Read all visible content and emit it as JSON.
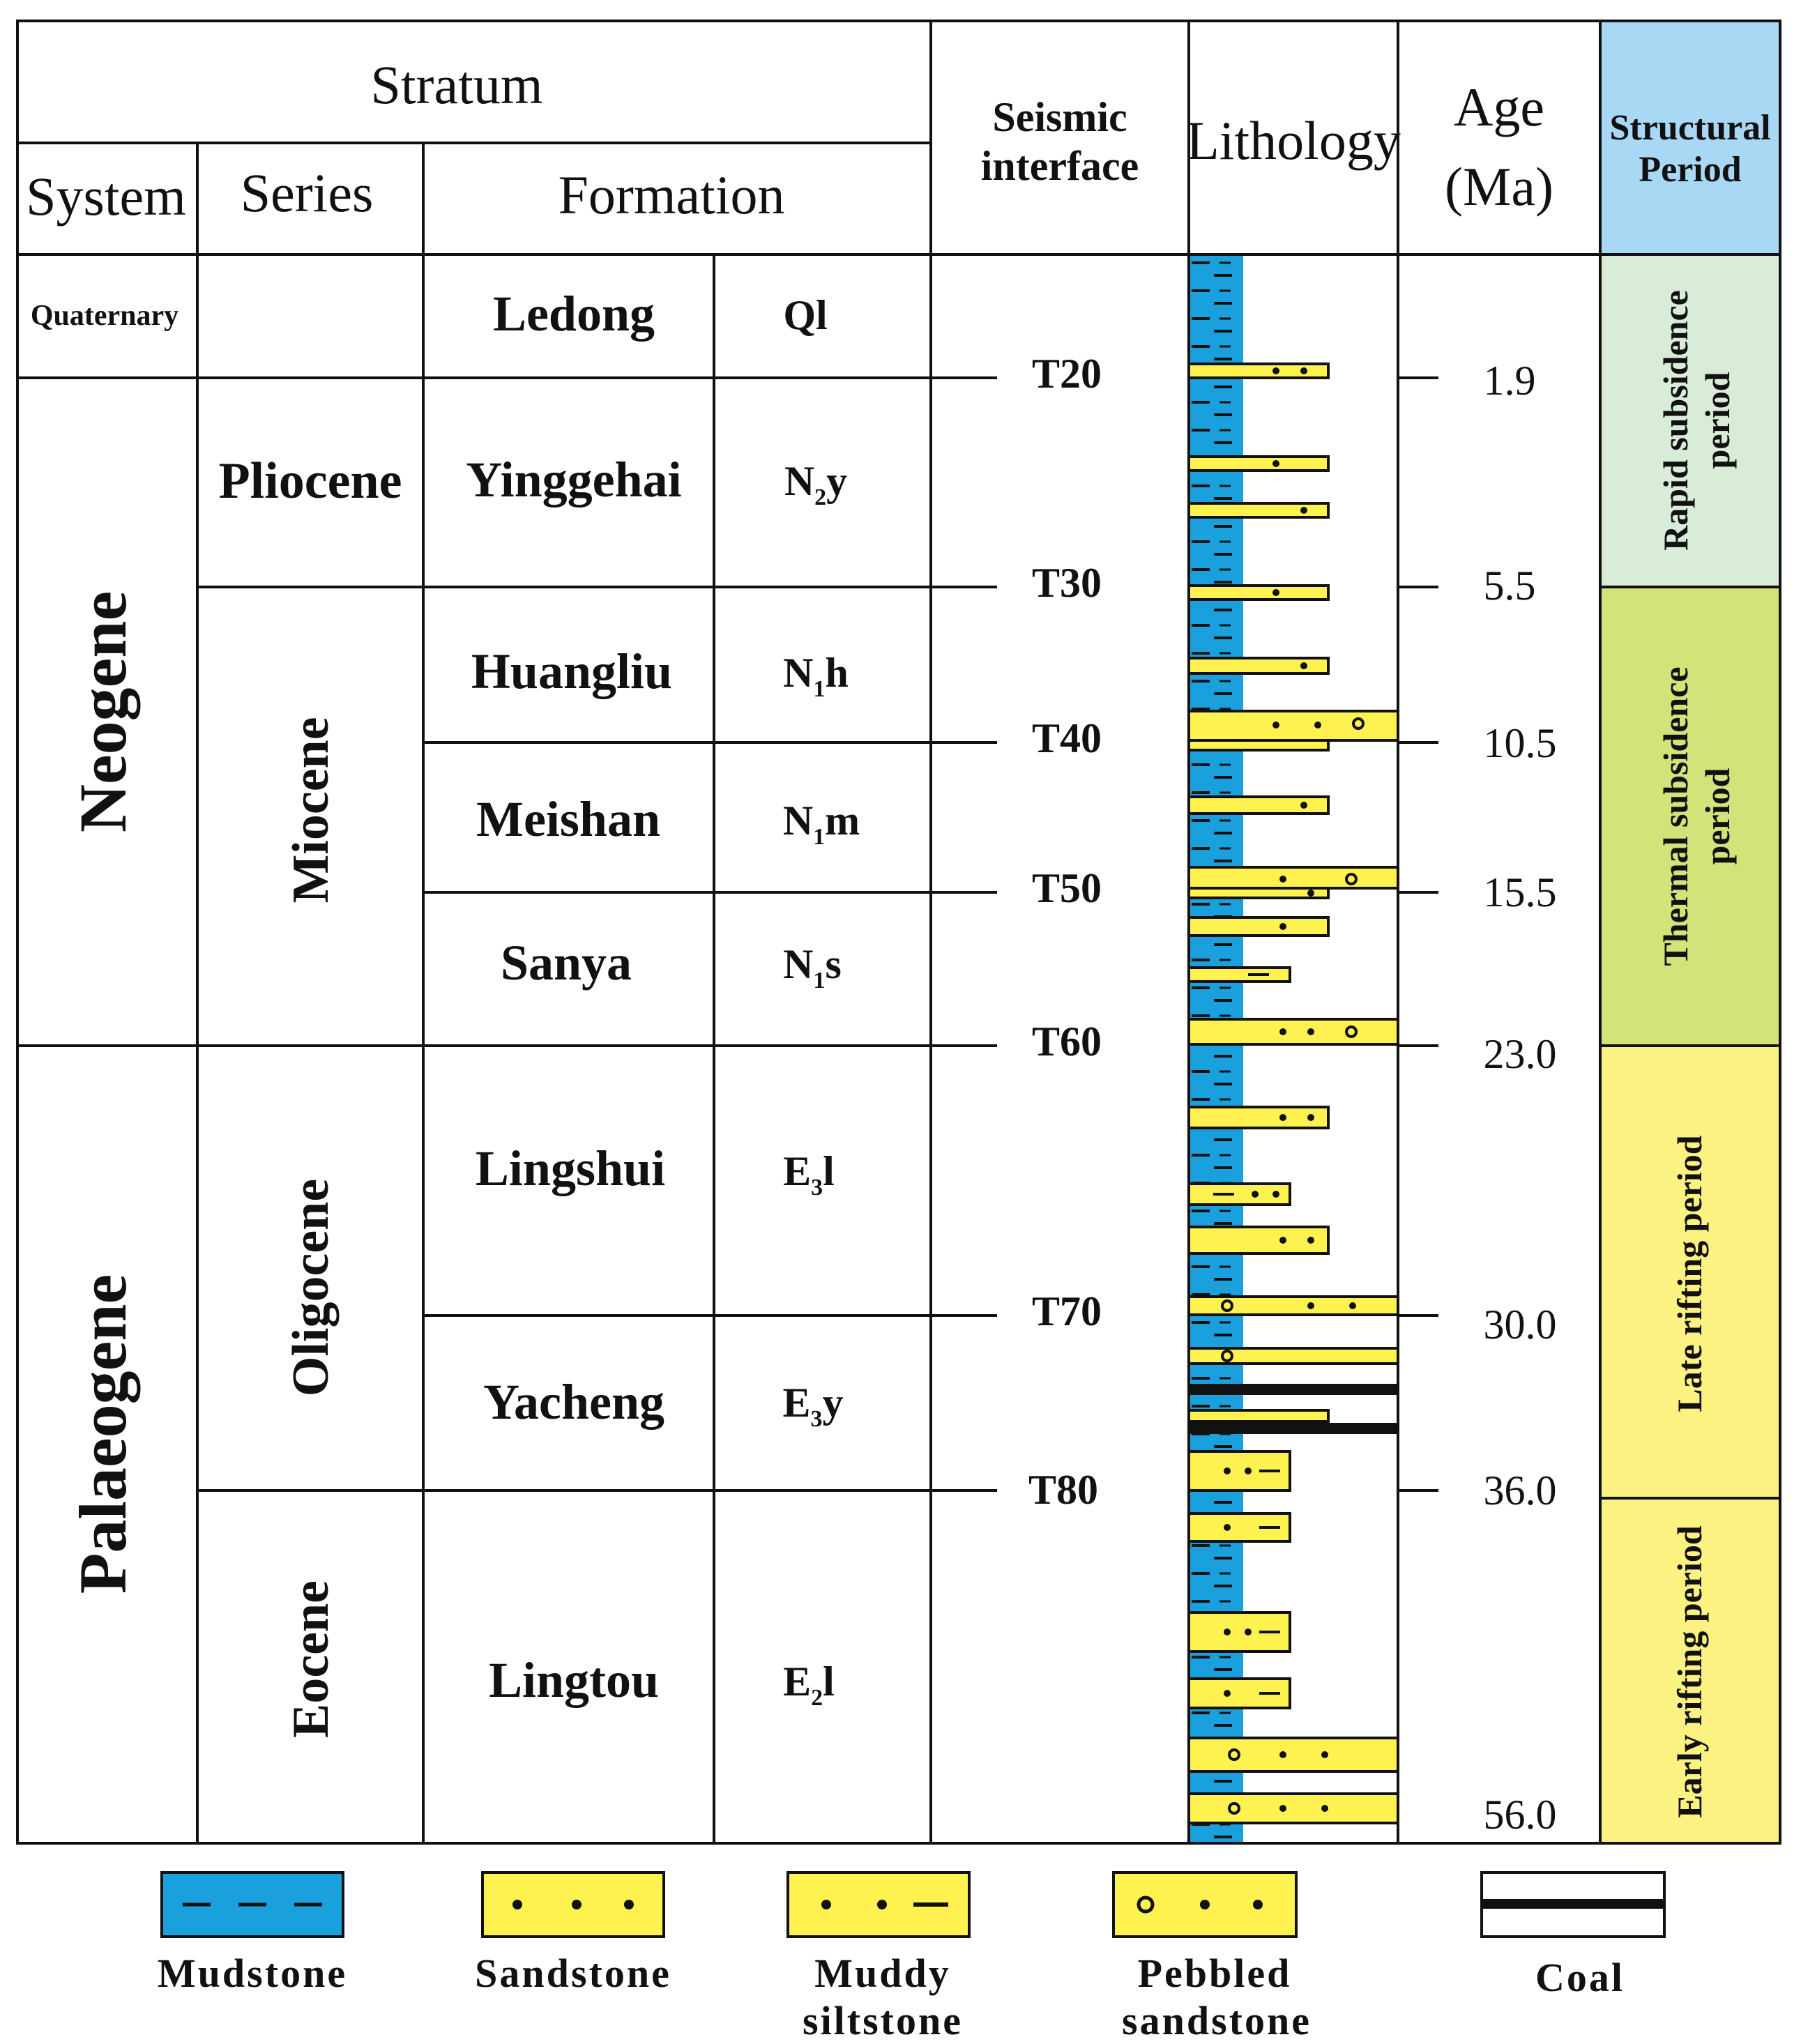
{
  "header": {
    "stratum": "Stratum",
    "system": "System",
    "series": "Series",
    "formation": "Formation",
    "seismic_line1": "Seismic",
    "seismic_line2": "interface",
    "lithology": "Lithology",
    "age_line1": "Age",
    "age_line2": "(Ma)",
    "structural_line1": "Structural",
    "structural_line2": "Period"
  },
  "systems": {
    "quaternary": "Quaternary",
    "neogene": "Neogene",
    "palaeogene": "Palaeogene"
  },
  "series": {
    "pliocene": "Pliocene",
    "miocene": "Miocene",
    "oligocene": "Oligocene",
    "eocene": "Eocene"
  },
  "formations": [
    {
      "name": "Ledong",
      "sym": "Ql",
      "base": "",
      "sub": "",
      "tail": ""
    },
    {
      "name": "Yinggehai",
      "sym": "",
      "base": "N",
      "sub": "2",
      "tail": "y"
    },
    {
      "name": "Huangliu",
      "sym": "",
      "base": "N",
      "sub": "1",
      "tail": "h"
    },
    {
      "name": "Meishan",
      "sym": "",
      "base": "N",
      "sub": "1",
      "tail": "m"
    },
    {
      "name": "Sanya",
      "sym": "",
      "base": "N",
      "sub": "1",
      "tail": "s"
    },
    {
      "name": "Lingshui",
      "sym": "",
      "base": "E",
      "sub": "3",
      "tail": "l"
    },
    {
      "name": "Yacheng",
      "sym": "",
      "base": "E",
      "sub": "3",
      "tail": "y"
    },
    {
      "name": "Lingtou",
      "sym": "",
      "base": "E",
      "sub": "2",
      "tail": "l"
    }
  ],
  "seismic_interfaces": [
    "T20",
    "T30",
    "T40",
    "T50",
    "T60",
    "T70",
    "T80"
  ],
  "ages": [
    "1.9",
    "5.5",
    "10.5",
    "15.5",
    "23.0",
    "30.0",
    "36.0",
    "56.0"
  ],
  "structural_periods": {
    "rapid_line1": "Rapid subsidence",
    "rapid_line2": "period",
    "thermal_line1": "Thermal subsidence",
    "thermal_line2": "period",
    "late_rifting": "Late rifting period",
    "early_rifting": "Early rifting period"
  },
  "legend": {
    "mudstone": "Mudstone",
    "sandstone": "Sandstone",
    "muddy_line1": "Muddy",
    "muddy_line2": "siltstone",
    "pebbled_line1": "Pebbled",
    "pebbled_line2": "sandstone",
    "coal": "Coal"
  },
  "colors": {
    "mudstone_blue": "#1aa0dc",
    "sand_yellow": "#fef250",
    "header_blue": "#a8d8f4",
    "rapid_green": "#d8ecd8",
    "thermal_green": "#d4e27a",
    "rifting_yellow": "#fcf282"
  }
}
